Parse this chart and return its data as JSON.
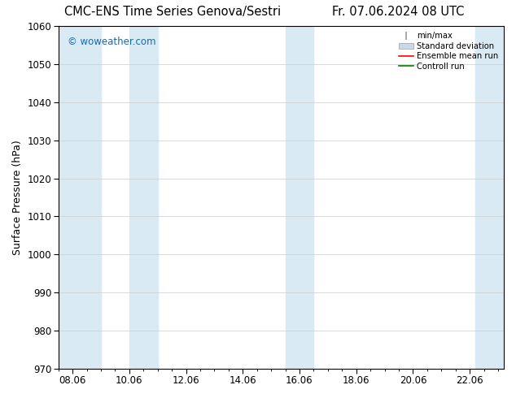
{
  "title_left": "CMC-ENS Time Series Genova/Sestri",
  "title_right": "Fr. 07.06.2024 08 UTC",
  "ylabel": "Surface Pressure (hPa)",
  "ylim": [
    970,
    1060
  ],
  "yticks": [
    970,
    980,
    990,
    1000,
    1010,
    1020,
    1030,
    1040,
    1050,
    1060
  ],
  "xtick_labels": [
    "08.06",
    "10.06",
    "12.06",
    "14.06",
    "16.06",
    "18.06",
    "20.06",
    "22.06"
  ],
  "xtick_positions": [
    0,
    2,
    4,
    6,
    8,
    10,
    12,
    14
  ],
  "xlim": [
    -0.5,
    15.2
  ],
  "watermark": "© woweather.com",
  "watermark_color": "#1a6aab",
  "bg_color": "#ffffff",
  "plot_bg_color": "#ffffff",
  "shaded_regions": [
    {
      "x_start": -0.5,
      "x_end": 1.0,
      "color": "#daeaf5"
    },
    {
      "x_start": 2.0,
      "x_end": 3.0,
      "color": "#daeaf5"
    },
    {
      "x_start": 7.5,
      "x_end": 8.5,
      "color": "#daeaf5"
    },
    {
      "x_start": 14.2,
      "x_end": 15.2,
      "color": "#daeaf5"
    }
  ],
  "legend_entries": [
    {
      "label": "min/max",
      "color": "#aaaaaa",
      "type": "errorbar"
    },
    {
      "label": "Standard deviation",
      "color": "#c8daea",
      "type": "fill"
    },
    {
      "label": "Ensemble mean run",
      "color": "#ff0000",
      "type": "line"
    },
    {
      "label": "Controll run",
      "color": "#008000",
      "type": "line"
    }
  ],
  "grid_color": "#cccccc",
  "tick_color": "#000000",
  "title_fontsize": 10.5,
  "axis_label_fontsize": 9,
  "tick_fontsize": 8.5,
  "fig_width": 6.34,
  "fig_height": 4.9,
  "dpi": 100
}
